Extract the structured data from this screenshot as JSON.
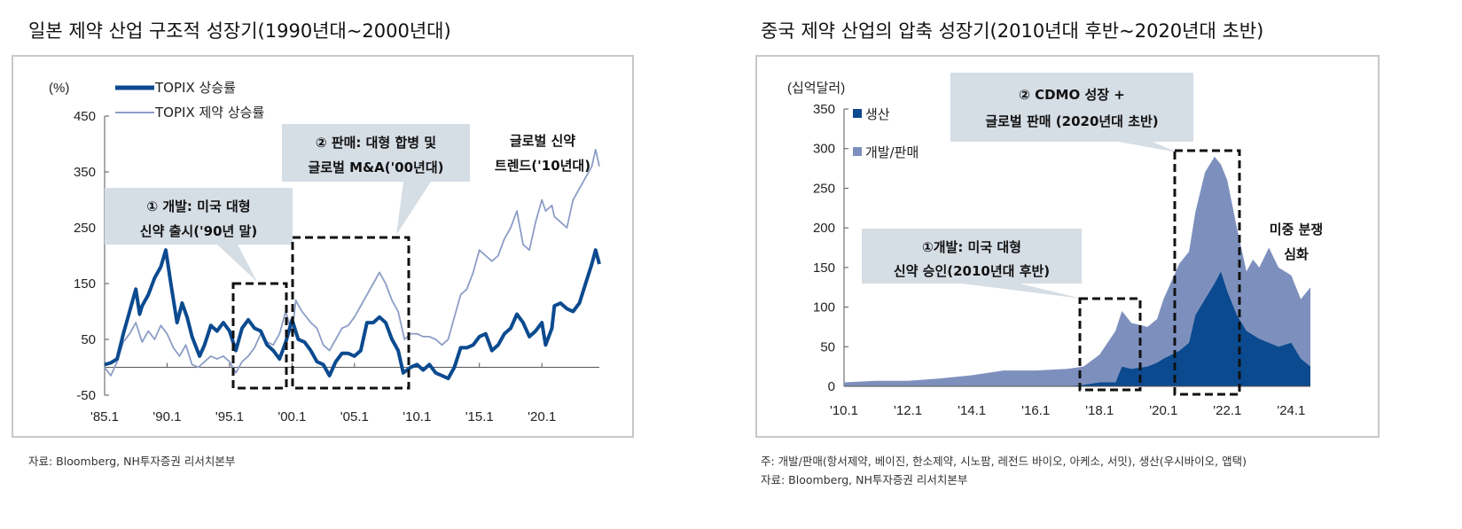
{
  "colors": {
    "dark": "#0b4a8f",
    "light_line": "#8d9dc6",
    "light_area": "#7d90bd",
    "callout_bg": "#d5dde5",
    "frame": "#c8c8c8"
  },
  "footnotes": {
    "left_source": "자료: Bloomberg, NH투자증권 리서치본부",
    "right_note": "주: 개발/판매(항서제약, 베이진, 한소제약, 시노팜, 레전드 바이오, 아케소, 서밋), 생산(우시바이오, 앱택)",
    "right_source": "자료: Bloomberg, NH투자증권 리서치본부"
  },
  "chart_data": [
    {
      "type": "line",
      "title": "일본 제약 산업 구조적 성장기(1990년대~2000년대)",
      "ylabel": "(%)",
      "ylim": [
        -50,
        450
      ],
      "yticks": [
        "450",
        "350",
        "250",
        "150",
        "50",
        "-50"
      ],
      "ytick_values": [
        450,
        350,
        250,
        150,
        50,
        -50
      ],
      "xlim": [
        1985.0,
        2024.6
      ],
      "xticks": [
        "'85.1",
        "'90.1",
        "'95.1",
        "'00.1",
        "'05.1",
        "'10.1",
        "'15.1",
        "'20.1"
      ],
      "xtick_values": [
        1985.0,
        1990.0,
        1995.0,
        2000.0,
        2005.0,
        2010.0,
        2015.0,
        2020.0
      ],
      "legend": "top-left",
      "series": [
        {
          "name": "TOPIX 상승률",
          "style": "thick",
          "x": [
            1985.0,
            1985.5,
            1986.0,
            1986.5,
            1987.0,
            1987.5,
            1987.8,
            1988.0,
            1988.5,
            1989.0,
            1989.5,
            1989.9,
            1990.3,
            1990.8,
            1991.2,
            1991.6,
            1992.0,
            1992.6,
            1993.0,
            1993.5,
            1994.0,
            1994.5,
            1995.0,
            1995.5,
            1996.0,
            1996.5,
            1997.0,
            1997.5,
            1998.0,
            1998.5,
            1999.0,
            1999.5,
            2000.0,
            2000.5,
            2001.0,
            2001.5,
            2002.0,
            2002.5,
            2003.0,
            2003.5,
            2004.0,
            2004.5,
            2005.0,
            2005.5,
            2006.0,
            2006.5,
            2007.0,
            2007.5,
            2008.0,
            2008.5,
            2008.9,
            2009.5,
            2010.0,
            2010.5,
            2011.0,
            2011.5,
            2012.0,
            2012.5,
            2013.0,
            2013.5,
            2014.0,
            2014.5,
            2015.0,
            2015.5,
            2016.0,
            2016.5,
            2017.0,
            2017.5,
            2018.0,
            2018.5,
            2019.0,
            2019.5,
            2020.0,
            2020.3,
            2020.8,
            2021.0,
            2021.5,
            2022.0,
            2022.5,
            2023.0,
            2023.5,
            2024.0,
            2024.3,
            2024.6
          ],
          "y": [
            5,
            8,
            15,
            60,
            100,
            140,
            95,
            110,
            130,
            160,
            180,
            210,
            150,
            80,
            115,
            90,
            55,
            20,
            40,
            75,
            65,
            80,
            65,
            30,
            70,
            85,
            70,
            65,
            40,
            30,
            15,
            45,
            85,
            50,
            45,
            30,
            10,
            5,
            -15,
            10,
            25,
            25,
            20,
            30,
            80,
            80,
            90,
            80,
            50,
            30,
            -10,
            0,
            5,
            -5,
            5,
            -10,
            -15,
            -20,
            0,
            35,
            35,
            40,
            55,
            60,
            30,
            40,
            60,
            70,
            95,
            80,
            55,
            65,
            80,
            40,
            70,
            110,
            115,
            105,
            100,
            115,
            150,
            185,
            210,
            185
          ]
        },
        {
          "name": "TOPIX 제약 상승률",
          "style": "thin",
          "x": [
            1985.0,
            1985.5,
            1986.0,
            1986.5,
            1987.0,
            1987.5,
            1988.0,
            1988.5,
            1989.0,
            1989.5,
            1990.0,
            1990.5,
            1991.0,
            1991.5,
            1992.0,
            1992.5,
            1993.0,
            1993.5,
            1994.0,
            1994.5,
            1995.0,
            1995.5,
            1996.0,
            1996.5,
            1997.0,
            1997.5,
            1998.0,
            1998.5,
            1999.0,
            1999.5,
            2000.0,
            2000.3,
            2000.8,
            2001.5,
            2002.0,
            2002.5,
            2003.0,
            2003.5,
            2004.0,
            2004.5,
            2005.0,
            2005.5,
            2006.0,
            2006.5,
            2007.0,
            2007.5,
            2008.0,
            2008.5,
            2009.0,
            2009.5,
            2010.0,
            2010.5,
            2011.0,
            2011.5,
            2012.0,
            2012.5,
            2013.0,
            2013.5,
            2014.0,
            2014.5,
            2015.0,
            2015.5,
            2016.0,
            2016.5,
            2017.0,
            2017.5,
            2018.0,
            2018.5,
            2019.0,
            2019.5,
            2020.0,
            2020.3,
            2020.8,
            2021.0,
            2021.5,
            2022.0,
            2022.5,
            2023.0,
            2023.5,
            2024.0,
            2024.3,
            2024.6
          ],
          "y": [
            0,
            -15,
            10,
            45,
            60,
            80,
            45,
            65,
            50,
            75,
            60,
            35,
            20,
            40,
            5,
            0,
            10,
            20,
            15,
            20,
            10,
            -10,
            10,
            20,
            35,
            60,
            45,
            40,
            60,
            100,
            60,
            120,
            100,
            80,
            70,
            40,
            30,
            50,
            70,
            75,
            90,
            110,
            130,
            150,
            170,
            150,
            120,
            100,
            50,
            60,
            60,
            55,
            55,
            50,
            40,
            50,
            90,
            130,
            140,
            170,
            210,
            200,
            190,
            200,
            230,
            250,
            280,
            220,
            210,
            260,
            300,
            280,
            290,
            270,
            260,
            250,
            300,
            320,
            340,
            360,
            390,
            360
          ]
        }
      ],
      "annotations": [
        {
          "lines": [
            "① 개발: 미국 대형",
            "신약 출시('90년 말)"
          ],
          "box_range": [
            1996.5,
            2000.5
          ]
        },
        {
          "lines": [
            "② 판매: 대형 합병 및",
            "글로벌 M&A('00년대)"
          ],
          "box_range": [
            2001.0,
            2010.0
          ]
        },
        {
          "lines": [
            "글로벌 신약",
            "트렌드('10년대)"
          ]
        }
      ]
    },
    {
      "type": "area",
      "stacked": true,
      "title": "중국 제약 산업의 압축 성장기(2010년대 후반~2020년대 초반)",
      "ylabel": "(십억달러)",
      "ylim": [
        0,
        350
      ],
      "yticks": [
        "350",
        "300",
        "250",
        "200",
        "150",
        "100",
        "50",
        "0"
      ],
      "ytick_values": [
        350,
        300,
        250,
        200,
        150,
        100,
        50,
        0
      ],
      "xlim": [
        2010.0,
        2024.6
      ],
      "xticks": [
        "'10.1",
        "'12.1",
        "'14.1",
        "'16.1",
        "'18.1",
        "'20.1",
        "'22.1",
        "'24.1"
      ],
      "xtick_values": [
        2010.0,
        2012.0,
        2014.0,
        2016.0,
        2018.0,
        2020.0,
        2022.0,
        2024.0
      ],
      "legend": "top-left",
      "x": [
        2010.0,
        2011.0,
        2012.0,
        2013.0,
        2014.0,
        2015.0,
        2016.0,
        2017.0,
        2017.5,
        2018.0,
        2018.5,
        2018.7,
        2019.0,
        2019.5,
        2019.8,
        2020.0,
        2020.5,
        2020.8,
        2021.0,
        2021.3,
        2021.6,
        2021.8,
        2022.0,
        2022.3,
        2022.6,
        2022.8,
        2023.0,
        2023.3,
        2023.6,
        2024.0,
        2024.3,
        2024.6
      ],
      "series": [
        {
          "name": "생산",
          "values": [
            0,
            0,
            0,
            0,
            0,
            0,
            0,
            0,
            2,
            5,
            5,
            25,
            22,
            25,
            30,
            35,
            45,
            55,
            90,
            110,
            130,
            145,
            120,
            90,
            70,
            65,
            60,
            55,
            50,
            55,
            35,
            25
          ]
        },
        {
          "name": "개발/판매",
          "values": [
            5,
            7,
            7,
            10,
            14,
            20,
            20,
            22,
            23,
            35,
            65,
            70,
            58,
            50,
            55,
            75,
            110,
            115,
            130,
            160,
            160,
            135,
            140,
            110,
            75,
            95,
            90,
            120,
            100,
            85,
            75,
            100
          ]
        }
      ],
      "annotations": [
        {
          "lines": [
            "①개발: 미국 대형",
            "신약 승인(2010년대 후반)"
          ],
          "box_range": [
            2017.8,
            2019.7
          ]
        },
        {
          "lines": [
            "② CDMO 성장 +",
            "글로벌 판매 (2020년대 초반)"
          ],
          "box_range": [
            2020.7,
            2022.7
          ]
        },
        {
          "lines": [
            "미중 분쟁",
            "심화"
          ]
        }
      ]
    }
  ]
}
